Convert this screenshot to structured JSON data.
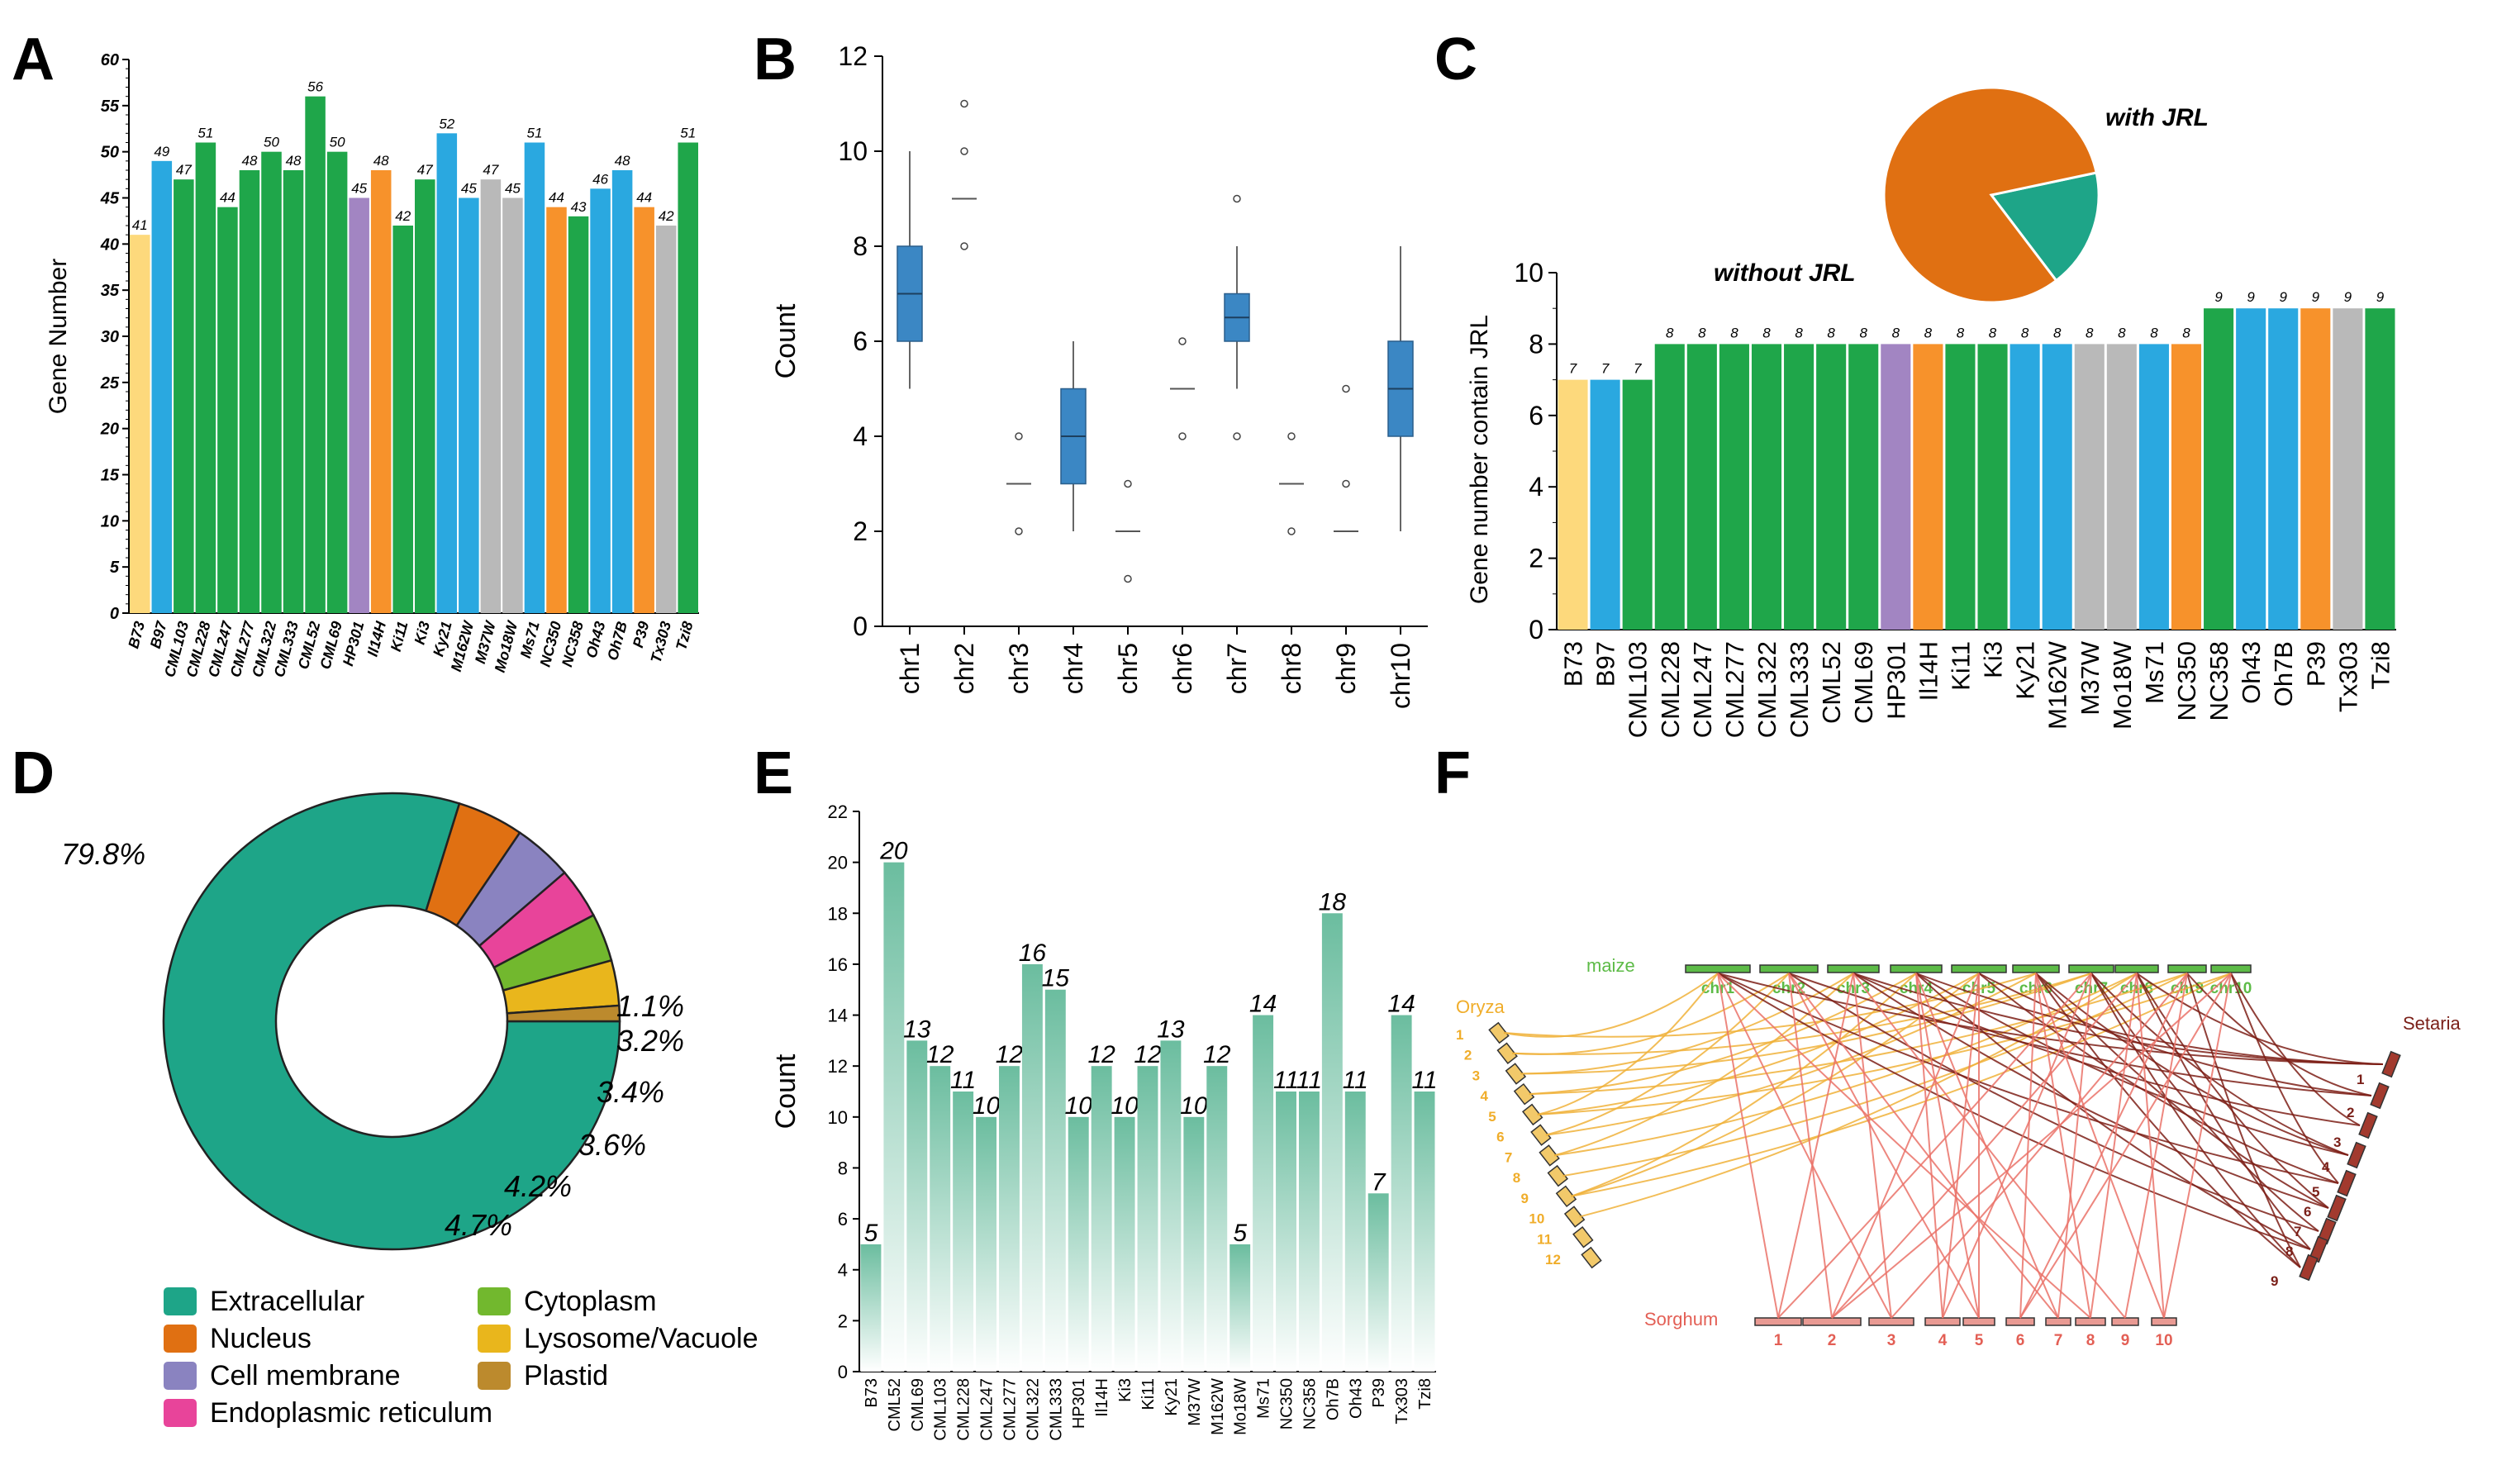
{
  "panel_letters": {
    "A": "A",
    "B": "B",
    "C": "C",
    "D": "D",
    "E": "E",
    "F": "F"
  },
  "colors": {
    "yellow": "#fdd97c",
    "blue": "#2aa8e0",
    "green": "#1fa64a",
    "purple": "#a285c2",
    "orange": "#f7922b",
    "gray": "#b9b9b9",
    "deep_orange": "#e07012",
    "teal": "#1ea588",
    "box": "#3b87c4",
    "maize": "#5dbb47",
    "oryza": "#f0ad2a",
    "setaria": "#7a1f18",
    "sorghum": "#e35f55"
  },
  "chart_data": [
    {
      "panel": "A",
      "type": "bar",
      "ylabel": "Gene Number",
      "ylim": [
        0,
        60
      ],
      "yticks": [
        0,
        5,
        10,
        15,
        20,
        25,
        30,
        35,
        40,
        45,
        50,
        55,
        60
      ],
      "categories": [
        "B73",
        "B97",
        "CML103",
        "CML228",
        "CML247",
        "CML277",
        "CML322",
        "CML333",
        "CML52",
        "CML69",
        "HP301",
        "Il14H",
        "Ki11",
        "Ki3",
        "Ky21",
        "M162W",
        "M37W",
        "Mo18W",
        "Ms71",
        "NC350",
        "NC358",
        "Oh43",
        "Oh7B",
        "P39",
        "Tx303",
        "Tzi8"
      ],
      "values": [
        41,
        49,
        47,
        51,
        44,
        48,
        50,
        48,
        56,
        50,
        45,
        48,
        42,
        47,
        52,
        45,
        47,
        45,
        51,
        44,
        43,
        46,
        48,
        44,
        42,
        51
      ],
      "colors": [
        "yellow",
        "blue",
        "green",
        "green",
        "green",
        "green",
        "green",
        "green",
        "green",
        "green",
        "purple",
        "orange",
        "green",
        "green",
        "blue",
        "blue",
        "gray",
        "gray",
        "blue",
        "orange",
        "green",
        "blue",
        "blue",
        "orange",
        "gray",
        "green"
      ]
    },
    {
      "panel": "B",
      "type": "box",
      "ylabel": "Count",
      "ylim": [
        0,
        12
      ],
      "yticks": [
        0,
        2,
        4,
        6,
        8,
        10,
        12
      ],
      "categories": [
        "chr1",
        "chr2",
        "chr3",
        "chr4",
        "chr5",
        "chr6",
        "chr7",
        "chr8",
        "chr9",
        "chr10"
      ],
      "boxes": [
        {
          "q1": 6,
          "median": 7,
          "q3": 8,
          "wlo": 5,
          "whi": 10,
          "outliers": []
        },
        {
          "q1": 9,
          "median": 9,
          "q3": 9,
          "wlo": 9,
          "whi": 9,
          "outliers": [
            11,
            10,
            8
          ]
        },
        {
          "q1": 3,
          "median": 3,
          "q3": 3,
          "wlo": 3,
          "whi": 3,
          "outliers": [
            4,
            2
          ]
        },
        {
          "q1": 3,
          "median": 4,
          "q3": 5,
          "wlo": 2,
          "whi": 6,
          "outliers": []
        },
        {
          "q1": 2,
          "median": 2,
          "q3": 2,
          "wlo": 2,
          "whi": 2,
          "outliers": [
            3,
            1
          ]
        },
        {
          "q1": 5,
          "median": 5,
          "q3": 5,
          "wlo": 5,
          "whi": 5,
          "outliers": [
            6,
            4
          ]
        },
        {
          "q1": 6,
          "median": 6.5,
          "q3": 7,
          "wlo": 5,
          "whi": 8,
          "outliers": [
            9,
            4
          ]
        },
        {
          "q1": 3,
          "median": 3,
          "q3": 3,
          "wlo": 3,
          "whi": 3,
          "outliers": [
            4,
            2
          ]
        },
        {
          "q1": 2,
          "median": 2,
          "q3": 2,
          "wlo": 2,
          "whi": 2,
          "outliers": [
            5,
            3
          ]
        },
        {
          "q1": 4,
          "median": 5,
          "q3": 6,
          "wlo": 2,
          "whi": 8,
          "outliers": []
        }
      ]
    },
    {
      "panel": "C",
      "type": "bar",
      "ylabel": "Gene number contain JRL",
      "ylim": [
        0,
        10
      ],
      "yticks": [
        0,
        2,
        4,
        6,
        8,
        10
      ],
      "categories": [
        "B73",
        "B97",
        "CML103",
        "CML228",
        "CML247",
        "CML277",
        "CML322",
        "CML333",
        "CML52",
        "CML69",
        "HP301",
        "Il14H",
        "Ki11",
        "Ki3",
        "Ky21",
        "M162W",
        "M37W",
        "Mo18W",
        "Ms71",
        "NC350",
        "NC358",
        "Oh43",
        "Oh7B",
        "P39",
        "Tx303",
        "Tzi8"
      ],
      "values": [
        7,
        7,
        7,
        8,
        8,
        8,
        8,
        8,
        8,
        8,
        8,
        8,
        8,
        8,
        8,
        8,
        8,
        8,
        8,
        8,
        9,
        9,
        9,
        9,
        9,
        9
      ],
      "colors": [
        "yellow",
        "blue",
        "green",
        "green",
        "green",
        "green",
        "green",
        "green",
        "green",
        "green",
        "purple",
        "orange",
        "green",
        "green",
        "blue",
        "blue",
        "gray",
        "gray",
        "blue",
        "orange",
        "green",
        "blue",
        "blue",
        "orange",
        "gray",
        "green"
      ]
    },
    {
      "panel": "C-inset",
      "type": "pie",
      "labels": [
        "with JRL",
        "without JRL"
      ],
      "values": [
        18,
        82
      ],
      "colors": [
        "teal",
        "deep_orange"
      ]
    },
    {
      "panel": "D",
      "type": "pie",
      "labels": [
        "Extracellular",
        "Nucleus",
        "Cell membrane",
        "Endoplasmic reticulum",
        "Cytoplasm",
        "Lysosome/Vacuole",
        "Plastid"
      ],
      "values": [
        79.8,
        4.7,
        4.2,
        3.6,
        3.4,
        3.2,
        1.1
      ],
      "display": [
        "79.8%",
        "4.7%",
        "4.2%",
        "3.6%",
        "3.4%",
        "3.2%",
        "1.1%"
      ],
      "colors": [
        "#1ea588",
        "#e07012",
        "#8a83c0",
        "#e8449a",
        "#72b82e",
        "#e9b61c",
        "#bc8a2d"
      ]
    },
    {
      "panel": "E",
      "type": "bar",
      "ylabel": "Count",
      "ylim": [
        0,
        22
      ],
      "yticks": [
        0,
        2,
        4,
        6,
        8,
        10,
        12,
        14,
        16,
        18,
        20,
        22
      ],
      "categories": [
        "B73",
        "CML52",
        "CML69",
        "CML103",
        "CML228",
        "CML247",
        "CML277",
        "CML322",
        "CML333",
        "HP301",
        "Il14H",
        "Ki3",
        "Ki11",
        "Ky21",
        "M37W",
        "M162W",
        "Mo18W",
        "Ms71",
        "NC350",
        "NC358",
        "Oh7B",
        "Oh43",
        "P39",
        "Tx303",
        "Tzi8"
      ],
      "values": [
        5,
        20,
        13,
        12,
        11,
        10,
        12,
        16,
        15,
        10,
        12,
        10,
        12,
        13,
        10,
        12,
        5,
        14,
        11,
        11,
        18,
        11,
        7,
        14,
        11
      ]
    }
  ],
  "synteny": {
    "maize_label": "maize",
    "maize_chrs": [
      "chr1",
      "chr2",
      "chr3",
      "chr4",
      "chr5",
      "chr6",
      "chr7",
      "chr8",
      "chr9",
      "chr10"
    ],
    "oryza_label": "Oryza",
    "oryza_chrs": [
      "1",
      "2",
      "3",
      "4",
      "5",
      "6",
      "7",
      "8",
      "9",
      "10",
      "11",
      "12"
    ],
    "setaria_label": "Setaria",
    "setaria_chrs": [
      "1",
      "2",
      "3",
      "4",
      "5",
      "6",
      "7",
      "8",
      "9"
    ],
    "sorghum_label": "Sorghum",
    "sorghum_chrs": [
      "1",
      "2",
      "3",
      "4",
      "5",
      "6",
      "7",
      "8",
      "9",
      "10"
    ]
  }
}
